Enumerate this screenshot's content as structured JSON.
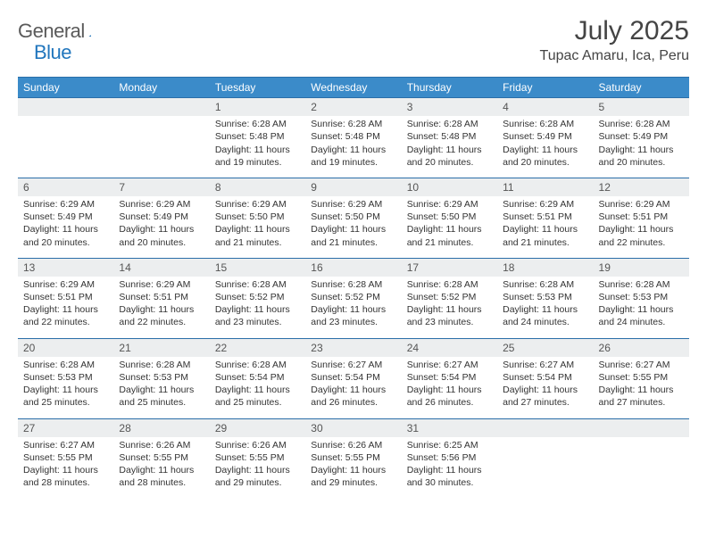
{
  "brand": {
    "part1": "General",
    "part2": "Blue"
  },
  "title": "July 2025",
  "location": "Tupac Amaru, Ica, Peru",
  "colors": {
    "header_bg": "#3b8bc9",
    "header_border": "#2a6ea8",
    "daynum_bg": "#eceeef",
    "text": "#333333",
    "brand_gray": "#5a5a5a",
    "brand_blue": "#2176bd"
  },
  "weekdays": [
    "Sunday",
    "Monday",
    "Tuesday",
    "Wednesday",
    "Thursday",
    "Friday",
    "Saturday"
  ],
  "weeks": [
    [
      null,
      null,
      {
        "n": "1",
        "sr": "6:28 AM",
        "ss": "5:48 PM",
        "dl": "11 hours and 19 minutes."
      },
      {
        "n": "2",
        "sr": "6:28 AM",
        "ss": "5:48 PM",
        "dl": "11 hours and 19 minutes."
      },
      {
        "n": "3",
        "sr": "6:28 AM",
        "ss": "5:48 PM",
        "dl": "11 hours and 20 minutes."
      },
      {
        "n": "4",
        "sr": "6:28 AM",
        "ss": "5:49 PM",
        "dl": "11 hours and 20 minutes."
      },
      {
        "n": "5",
        "sr": "6:28 AM",
        "ss": "5:49 PM",
        "dl": "11 hours and 20 minutes."
      }
    ],
    [
      {
        "n": "6",
        "sr": "6:29 AM",
        "ss": "5:49 PM",
        "dl": "11 hours and 20 minutes."
      },
      {
        "n": "7",
        "sr": "6:29 AM",
        "ss": "5:49 PM",
        "dl": "11 hours and 20 minutes."
      },
      {
        "n": "8",
        "sr": "6:29 AM",
        "ss": "5:50 PM",
        "dl": "11 hours and 21 minutes."
      },
      {
        "n": "9",
        "sr": "6:29 AM",
        "ss": "5:50 PM",
        "dl": "11 hours and 21 minutes."
      },
      {
        "n": "10",
        "sr": "6:29 AM",
        "ss": "5:50 PM",
        "dl": "11 hours and 21 minutes."
      },
      {
        "n": "11",
        "sr": "6:29 AM",
        "ss": "5:51 PM",
        "dl": "11 hours and 21 minutes."
      },
      {
        "n": "12",
        "sr": "6:29 AM",
        "ss": "5:51 PM",
        "dl": "11 hours and 22 minutes."
      }
    ],
    [
      {
        "n": "13",
        "sr": "6:29 AM",
        "ss": "5:51 PM",
        "dl": "11 hours and 22 minutes."
      },
      {
        "n": "14",
        "sr": "6:29 AM",
        "ss": "5:51 PM",
        "dl": "11 hours and 22 minutes."
      },
      {
        "n": "15",
        "sr": "6:28 AM",
        "ss": "5:52 PM",
        "dl": "11 hours and 23 minutes."
      },
      {
        "n": "16",
        "sr": "6:28 AM",
        "ss": "5:52 PM",
        "dl": "11 hours and 23 minutes."
      },
      {
        "n": "17",
        "sr": "6:28 AM",
        "ss": "5:52 PM",
        "dl": "11 hours and 23 minutes."
      },
      {
        "n": "18",
        "sr": "6:28 AM",
        "ss": "5:53 PM",
        "dl": "11 hours and 24 minutes."
      },
      {
        "n": "19",
        "sr": "6:28 AM",
        "ss": "5:53 PM",
        "dl": "11 hours and 24 minutes."
      }
    ],
    [
      {
        "n": "20",
        "sr": "6:28 AM",
        "ss": "5:53 PM",
        "dl": "11 hours and 25 minutes."
      },
      {
        "n": "21",
        "sr": "6:28 AM",
        "ss": "5:53 PM",
        "dl": "11 hours and 25 minutes."
      },
      {
        "n": "22",
        "sr": "6:28 AM",
        "ss": "5:54 PM",
        "dl": "11 hours and 25 minutes."
      },
      {
        "n": "23",
        "sr": "6:27 AM",
        "ss": "5:54 PM",
        "dl": "11 hours and 26 minutes."
      },
      {
        "n": "24",
        "sr": "6:27 AM",
        "ss": "5:54 PM",
        "dl": "11 hours and 26 minutes."
      },
      {
        "n": "25",
        "sr": "6:27 AM",
        "ss": "5:54 PM",
        "dl": "11 hours and 27 minutes."
      },
      {
        "n": "26",
        "sr": "6:27 AM",
        "ss": "5:55 PM",
        "dl": "11 hours and 27 minutes."
      }
    ],
    [
      {
        "n": "27",
        "sr": "6:27 AM",
        "ss": "5:55 PM",
        "dl": "11 hours and 28 minutes."
      },
      {
        "n": "28",
        "sr": "6:26 AM",
        "ss": "5:55 PM",
        "dl": "11 hours and 28 minutes."
      },
      {
        "n": "29",
        "sr": "6:26 AM",
        "ss": "5:55 PM",
        "dl": "11 hours and 29 minutes."
      },
      {
        "n": "30",
        "sr": "6:26 AM",
        "ss": "5:55 PM",
        "dl": "11 hours and 29 minutes."
      },
      {
        "n": "31",
        "sr": "6:25 AM",
        "ss": "5:56 PM",
        "dl": "11 hours and 30 minutes."
      },
      null,
      null
    ]
  ],
  "labels": {
    "sunrise": "Sunrise:",
    "sunset": "Sunset:",
    "daylight": "Daylight:"
  }
}
